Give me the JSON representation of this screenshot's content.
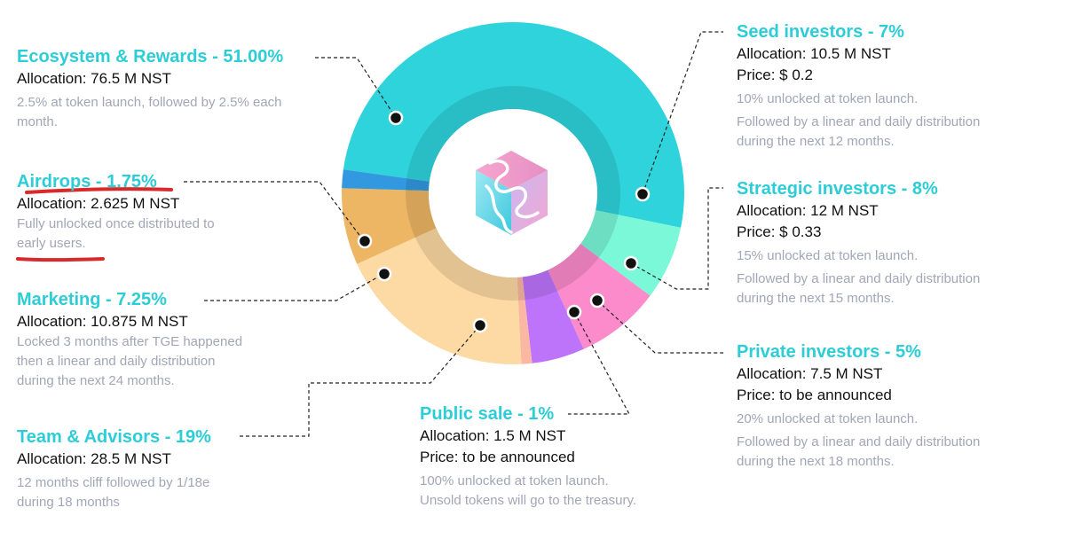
{
  "chart_data": {
    "type": "pie",
    "subtype": "donut",
    "categories": [
      "Ecosystem & Rewards",
      "Seed investors",
      "Strategic investors",
      "Private investors",
      "Public sale",
      "Team & Advisors",
      "Marketing",
      "Airdrops"
    ],
    "values": [
      51.0,
      7.0,
      8.0,
      5.0,
      1.0,
      19.0,
      7.25,
      1.75
    ],
    "colors": [
      "#2ed3dc",
      "#7bf8d8",
      "#fb8bcb",
      "#bd74fb",
      "#fab7a2",
      "#fdd9a3",
      "#edb664",
      "#3299e0"
    ],
    "inner_ring_color": "#cdebed",
    "center_logo": "cube-logo",
    "legend_placement": "callouts around chart"
  },
  "accent_color": "#2ccdd6",
  "annotation_color": "#d82a2a",
  "blocks": {
    "ecosystem": {
      "title": "Ecosystem & Rewards - 51.00%",
      "allocation": "Allocation: 76.5 M NST",
      "notes": [
        "2.5% at token launch, followed by 2.5% each",
        "month."
      ]
    },
    "airdrops": {
      "title": "Airdrops - 1.75%",
      "allocation": "Allocation: 2.625 M NST",
      "notes": [
        "Fully unlocked once distributed to",
        "early users."
      ]
    },
    "marketing": {
      "title": "Marketing - 7.25%",
      "allocation": "Allocation: 10.875 M NST",
      "notes": [
        "Locked 3 months after TGE happened",
        "then a linear and daily distribution",
        "during the next 24 months."
      ]
    },
    "team": {
      "title": "Team & Advisors - 19%",
      "allocation": "Allocation: 28.5 M NST",
      "notes": [
        "12 months cliff followed by 1/18e",
        "during 18 months"
      ]
    },
    "public": {
      "title": "Public sale - 1%",
      "allocation": "Allocation: 1.5 M NST",
      "price": "Price: to be announced",
      "notes": [
        "100% unlocked at token launch.",
        "Unsold tokens will go to the treasury."
      ]
    },
    "seed": {
      "title": "Seed investors - 7%",
      "allocation": "Allocation: 10.5 M NST",
      "price": "Price: $ 0.2",
      "notes": [
        "10% unlocked at token launch.",
        "Followed by a linear and daily distribution",
        "during the next 12 months."
      ]
    },
    "strategic": {
      "title": "Strategic investors - 8%",
      "allocation": "Allocation: 12 M NST",
      "price": "Price: $ 0.33",
      "notes": [
        "15% unlocked at token launch.",
        "Followed by a linear and daily distribution",
        "during the next 15 months."
      ]
    },
    "private": {
      "title": "Private investors - 5%",
      "allocation": "Allocation: 7.5 M NST",
      "price": "Price: to be announced",
      "notes": [
        "20% unlocked at token launch.",
        "Followed by a linear and daily distribution",
        "during the next 18 months."
      ]
    }
  }
}
